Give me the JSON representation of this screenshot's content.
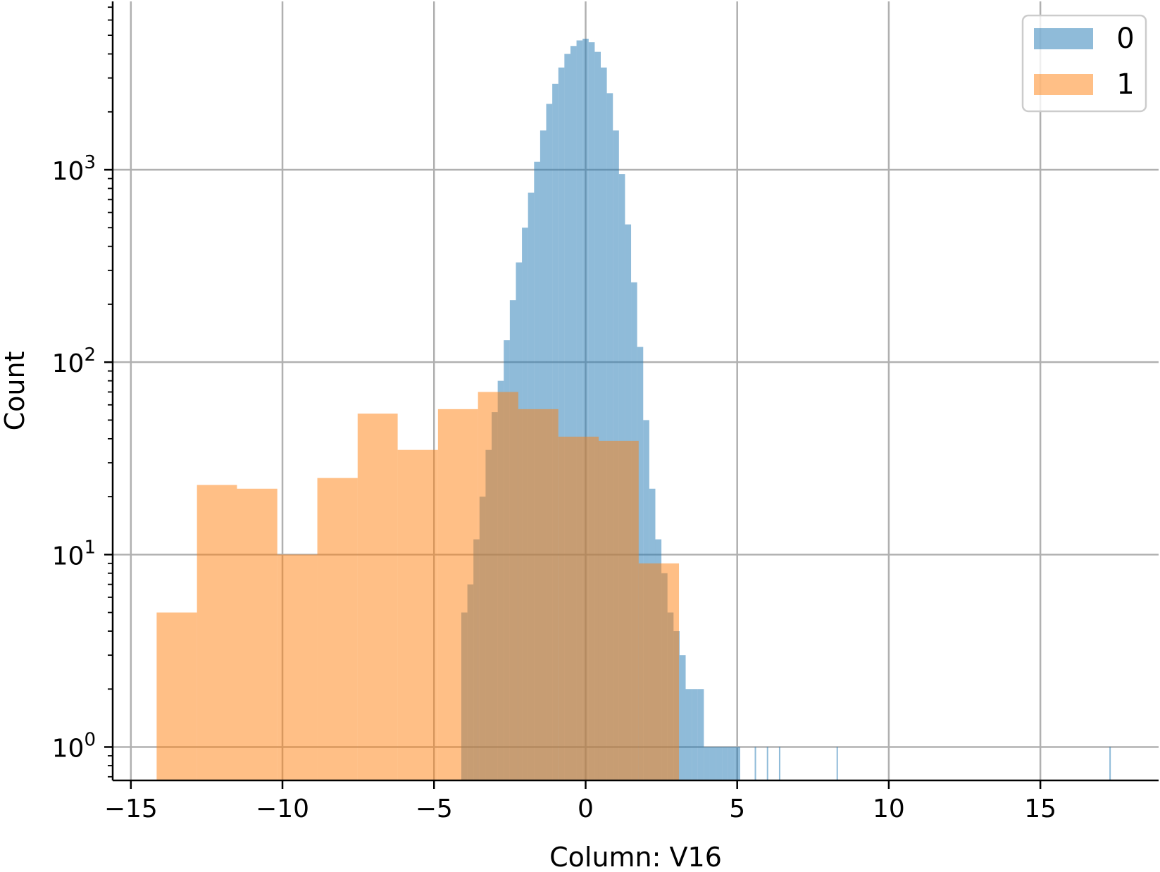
{
  "chart_data": {
    "type": "bar",
    "histogram": true,
    "title": "",
    "xlabel": "Column: V16",
    "ylabel": "Count",
    "xlim": [
      -15.6,
      18.9
    ],
    "ylim": [
      0.67,
      7500
    ],
    "y_scale": "log",
    "grid": true,
    "legend_position": "top-right",
    "x_ticks": [
      {
        "value": -15,
        "label": "−15"
      },
      {
        "value": -10,
        "label": "−10"
      },
      {
        "value": -5,
        "label": "−5"
      },
      {
        "value": 0,
        "label": "0"
      },
      {
        "value": 5,
        "label": "5"
      },
      {
        "value": 10,
        "label": "10"
      },
      {
        "value": 15,
        "label": "15"
      }
    ],
    "y_ticks": [
      {
        "value": 1,
        "base": "10",
        "exp": "0"
      },
      {
        "value": 10,
        "base": "10",
        "exp": "1"
      },
      {
        "value": 100,
        "base": "10",
        "exp": "2"
      },
      {
        "value": 1000,
        "base": "10",
        "exp": "3"
      }
    ],
    "series": [
      {
        "name": "0",
        "color": "#1f77b4",
        "opacity": 0.5,
        "bin_edges": [
          -4.1,
          -3.9,
          -3.7,
          -3.5,
          -3.3,
          -3.1,
          -2.9,
          -2.7,
          -2.5,
          -2.3,
          -2.1,
          -1.9,
          -1.7,
          -1.5,
          -1.3,
          -1.1,
          -0.9,
          -0.7,
          -0.5,
          -0.3,
          -0.1,
          0.1,
          0.3,
          0.5,
          0.7,
          0.9,
          1.1,
          1.3,
          1.5,
          1.7,
          1.9,
          2.1,
          2.3,
          2.5,
          2.7,
          2.9,
          3.1,
          3.3,
          3.5,
          3.7,
          3.9,
          4.1,
          4.3,
          4.5,
          4.7,
          4.9,
          5.1
        ],
        "counts": [
          5,
          7,
          12,
          20,
          35,
          55,
          80,
          130,
          210,
          330,
          500,
          760,
          1100,
          1600,
          2200,
          2800,
          3400,
          4000,
          4400,
          4700,
          4800,
          4600,
          4100,
          3400,
          2500,
          1600,
          950,
          520,
          260,
          120,
          50,
          22,
          12,
          8,
          5,
          4,
          3,
          2,
          2,
          2,
          1,
          1,
          1,
          1,
          1,
          1
        ],
        "outliers": [
          {
            "x": 5.6,
            "count": 1
          },
          {
            "x": 6.0,
            "count": 1
          },
          {
            "x": 6.4,
            "count": 1
          },
          {
            "x": 8.3,
            "count": 1
          },
          {
            "x": 17.3,
            "count": 1
          }
        ]
      },
      {
        "name": "1",
        "color": "#ff7f0e",
        "opacity": 0.5,
        "bin_edges": [
          -14.15,
          -12.82,
          -11.5,
          -10.17,
          -8.85,
          -7.52,
          -6.2,
          -4.87,
          -3.55,
          -2.22,
          -0.9,
          0.43,
          1.75,
          3.08
        ],
        "counts": [
          5,
          23,
          22,
          10,
          25,
          54,
          35,
          57,
          70,
          57,
          41,
          39,
          9
        ]
      }
    ]
  }
}
